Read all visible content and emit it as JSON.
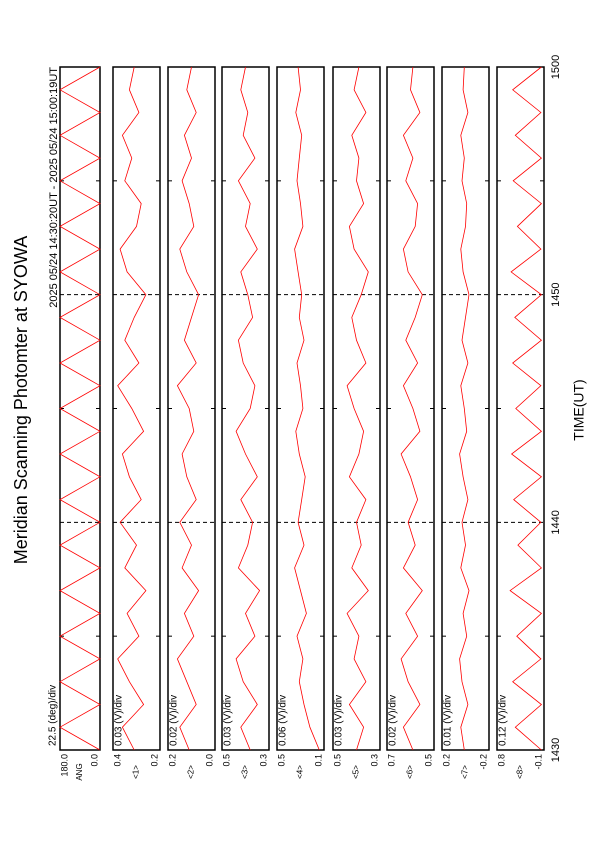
{
  "chart_data": {
    "type": "line",
    "title": "Meridian Scanning Photomter at SYOWA",
    "subtitle": "2025 05/24 14:30:20UT - 2025 05/24 15:00:19UT",
    "xlabel": "TIME(UT)",
    "xlim": [
      0,
      30
    ],
    "xticks": [
      {
        "value": 0,
        "label": "1430"
      },
      {
        "value": 10,
        "label": "1440"
      },
      {
        "value": 20,
        "label": "1450"
      },
      {
        "value": 30,
        "label": "1500"
      }
    ],
    "xminor": [
      5,
      15,
      25
    ],
    "x": [
      0,
      1,
      2,
      3,
      4,
      5,
      6,
      7,
      8,
      9,
      10,
      11,
      12,
      13,
      14,
      15,
      16,
      17,
      18,
      19,
      20,
      21,
      22,
      23,
      24,
      25,
      26,
      27,
      28,
      29,
      30
    ],
    "color": "#ff0000",
    "panels": [
      {
        "name": "ANG",
        "scale_label": "22.5 (deg)/div",
        "ylim": [
          0,
          180
        ],
        "yticks": [
          {
            "value": 0,
            "label": "0.0"
          },
          {
            "value": 180,
            "label": "180.0"
          }
        ],
        "values": [
          0,
          180,
          0,
          180,
          0,
          180,
          0,
          180,
          0,
          180,
          0,
          180,
          0,
          180,
          0,
          180,
          0,
          180,
          0,
          180,
          0,
          180,
          0,
          180,
          0,
          180,
          0,
          180,
          0,
          180,
          0
        ]
      },
      {
        "name": "<1>",
        "scale_label": "0.03 (V)/div",
        "ylim": [
          0.2,
          0.4
        ],
        "yticks": [
          0.2,
          0.4
        ],
        "values": [
          0.31,
          0.36,
          0.27,
          0.33,
          0.38,
          0.29,
          0.34,
          0.26,
          0.35,
          0.3,
          0.37,
          0.28,
          0.33,
          0.36,
          0.27,
          0.32,
          0.38,
          0.29,
          0.35,
          0.31,
          0.26,
          0.34,
          0.37,
          0.3,
          0.28,
          0.35,
          0.32,
          0.36,
          0.29,
          0.33,
          0.31
        ]
      },
      {
        "name": "<2>",
        "scale_label": "0.02 (V)/div",
        "ylim": [
          0,
          0.2
        ],
        "yticks": [
          {
            "value": 0,
            "label": "0.0"
          },
          0.2
        ],
        "values": [
          0.11,
          0.15,
          0.08,
          0.12,
          0.16,
          0.09,
          0.13,
          0.07,
          0.14,
          0.1,
          0.15,
          0.08,
          0.12,
          0.14,
          0.09,
          0.11,
          0.16,
          0.08,
          0.13,
          0.1,
          0.07,
          0.12,
          0.15,
          0.09,
          0.11,
          0.14,
          0.1,
          0.13,
          0.08,
          0.12,
          0.1
        ]
      },
      {
        "name": "<3>",
        "scale_label": "0.03 (V)/div",
        "ylim": [
          0.3,
          0.5
        ],
        "yticks": [
          0.3,
          0.5
        ],
        "values": [
          0.38,
          0.42,
          0.35,
          0.41,
          0.44,
          0.36,
          0.4,
          0.34,
          0.43,
          0.39,
          0.37,
          0.42,
          0.35,
          0.4,
          0.44,
          0.38,
          0.36,
          0.41,
          0.43,
          0.37,
          0.39,
          0.42,
          0.35,
          0.4,
          0.38,
          0.43,
          0.36,
          0.41,
          0.39,
          0.42,
          0.4
        ]
      },
      {
        "name": "<4>",
        "scale_label": "0.06 (V)/div",
        "ylim": [
          0.1,
          0.5
        ],
        "yticks": [
          0.1,
          0.5
        ],
        "values": [
          0.14,
          0.22,
          0.27,
          0.31,
          0.28,
          0.33,
          0.25,
          0.3,
          0.35,
          0.27,
          0.32,
          0.29,
          0.26,
          0.31,
          0.34,
          0.28,
          0.3,
          0.33,
          0.27,
          0.31,
          0.29,
          0.32,
          0.35,
          0.28,
          0.3,
          0.33,
          0.31,
          0.29,
          0.34,
          0.3,
          0.32
        ]
      },
      {
        "name": "<5>",
        "scale_label": "0.03 (V)/div",
        "ylim": [
          0.3,
          0.5
        ],
        "yticks": [
          0.3,
          0.5
        ],
        "values": [
          0.4,
          0.37,
          0.43,
          0.36,
          0.41,
          0.39,
          0.44,
          0.35,
          0.42,
          0.38,
          0.4,
          0.36,
          0.43,
          0.39,
          0.37,
          0.41,
          0.44,
          0.36,
          0.4,
          0.42,
          0.38,
          0.35,
          0.41,
          0.43,
          0.37,
          0.4,
          0.39,
          0.42,
          0.36,
          0.41,
          0.39
        ]
      },
      {
        "name": "<6>",
        "scale_label": "0.02 (V)/div",
        "ylim": [
          0.5,
          0.7
        ],
        "yticks": [
          0.5,
          0.7
        ],
        "values": [
          0.59,
          0.63,
          0.56,
          0.61,
          0.64,
          0.57,
          0.62,
          0.55,
          0.63,
          0.58,
          0.61,
          0.57,
          0.6,
          0.64,
          0.56,
          0.59,
          0.63,
          0.57,
          0.62,
          0.58,
          0.55,
          0.61,
          0.63,
          0.58,
          0.57,
          0.62,
          0.59,
          0.63,
          0.56,
          0.6,
          0.59
        ]
      },
      {
        "name": "<7>",
        "scale_label": "0.01 (V)/div",
        "ylim": [
          -0.2,
          0.2
        ],
        "yticks": [
          -0.2,
          0.2
        ],
        "values": [
          0.01,
          0.04,
          -0.02,
          0.03,
          0.05,
          -0.01,
          0.02,
          -0.03,
          0.04,
          0.0,
          0.03,
          -0.02,
          0.02,
          0.05,
          -0.01,
          0.01,
          0.04,
          -0.02,
          0.03,
          0.0,
          -0.03,
          0.02,
          0.04,
          0.0,
          -0.01,
          0.03,
          0.01,
          0.04,
          -0.02,
          0.02,
          0.01
        ]
      },
      {
        "name": "<8>",
        "scale_label": "0.12 (V)/div",
        "ylim": [
          -0.1,
          0.8
        ],
        "yticks": [
          -0.1,
          0.8
        ],
        "values": [
          -0.05,
          0.45,
          -0.05,
          0.5,
          -0.04,
          0.42,
          -0.05,
          0.55,
          -0.05,
          0.4,
          -0.04,
          0.48,
          -0.05,
          0.52,
          -0.05,
          0.44,
          -0.04,
          0.5,
          -0.05,
          0.46,
          -0.05,
          0.53,
          -0.04,
          0.41,
          -0.05,
          0.49,
          -0.05,
          0.45,
          -0.04,
          0.5,
          -0.05
        ]
      }
    ]
  }
}
